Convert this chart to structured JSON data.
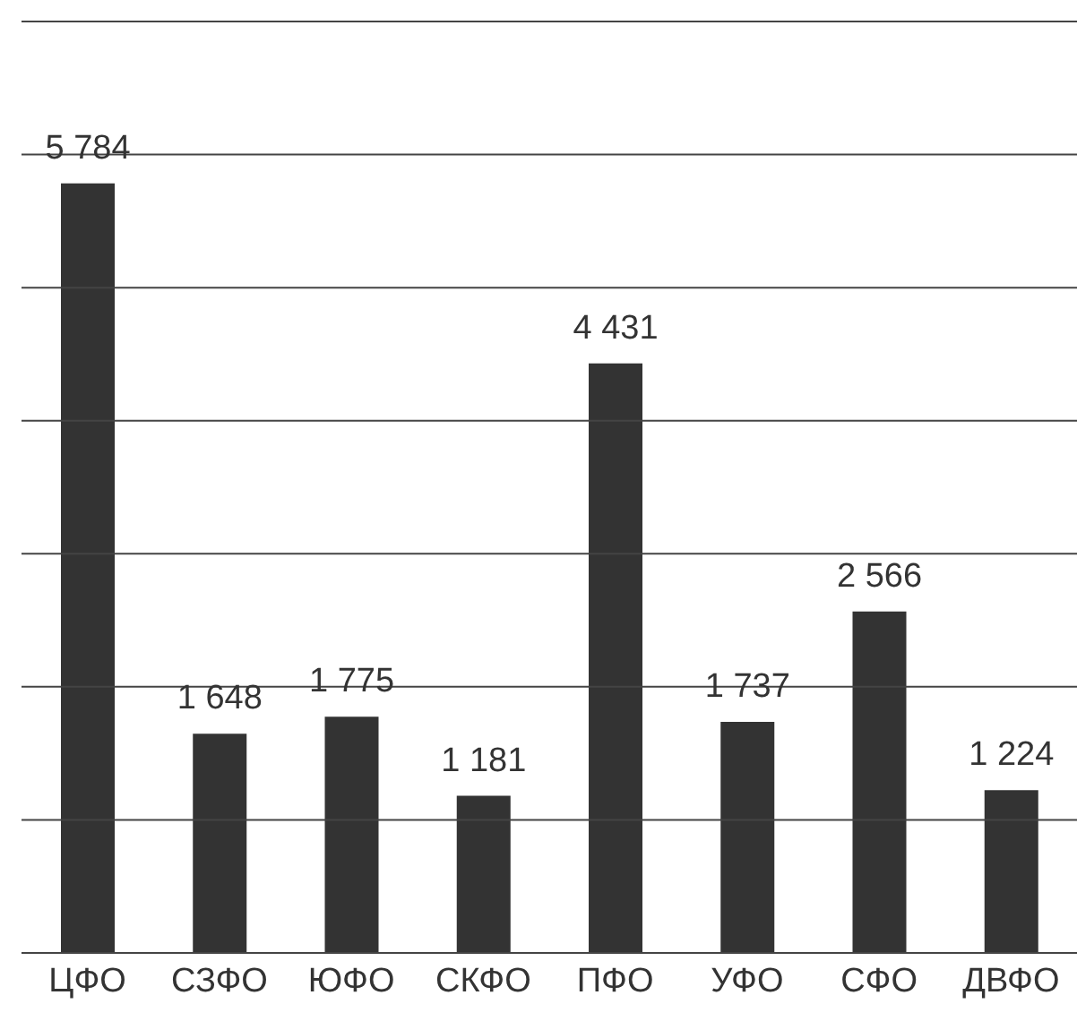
{
  "chart_data": {
    "type": "bar",
    "categories": [
      "ЦФО",
      "СЗФО",
      "ЮФО",
      "СКФО",
      "ПФО",
      "УФО",
      "СФО",
      "ДВФО"
    ],
    "values": [
      5784,
      1648,
      1775,
      1181,
      4431,
      1737,
      2566,
      1224
    ],
    "value_labels": [
      "5 784",
      "1 648",
      "1 775",
      "1 181",
      "4 431",
      "1 737",
      "2 566",
      "1 224"
    ],
    "color": "#333333",
    "ylim": [
      0,
      7000
    ],
    "yticks": [
      {
        "value": 0,
        "label": null
      },
      {
        "value": 1000,
        "label": null
      },
      {
        "value": 2000,
        "label": null
      },
      {
        "value": 3000,
        "label": null
      },
      {
        "value": 4000,
        "label": null
      },
      {
        "value": 5000,
        "label": null
      },
      {
        "value": 6000,
        "label": null
      },
      {
        "value": 7000,
        "label": null
      }
    ],
    "tick_labels": "x",
    "grid": "y"
  }
}
